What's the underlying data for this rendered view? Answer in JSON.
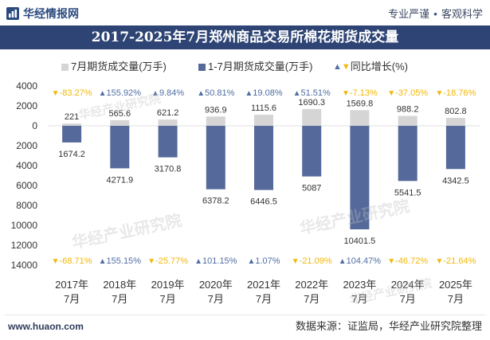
{
  "header": {
    "logo_icon": "logo-icon",
    "logo_text": "华经情报网",
    "slogan_left": "专业严谨",
    "slogan_dot": "●",
    "slogan_right": "客观科学"
  },
  "colors": {
    "title_bar": "#2d4474",
    "brand": "#2b4a80"
  },
  "watermark": "华经产业研究院",
  "chart_data": {
    "type": "bar",
    "title": "2017-2025年7月郑州商品交易所棉花期货成交量",
    "categories": [
      [
        "2017年",
        "7月"
      ],
      [
        "2018年",
        "7月"
      ],
      [
        "2019年",
        "7月"
      ],
      [
        "2020年",
        "7月"
      ],
      [
        "2021年",
        "7月"
      ],
      [
        "2022年",
        "7月"
      ],
      [
        "2023年",
        "7月"
      ],
      [
        "2024年",
        "7月"
      ],
      [
        "2025年",
        "7月"
      ]
    ],
    "series": [
      {
        "name": "7月期货成交量(万手)",
        "below_zero": false,
        "color": "#d5d5d5",
        "values": [
          221,
          565.6,
          621.2,
          936.9,
          1115.6,
          1690.3,
          1569.8,
          988.2,
          802.8
        ],
        "yoy": [
          -83.27,
          155.92,
          9.84,
          50.81,
          19.08,
          51.51,
          -7.13,
          -37.05,
          -18.76
        ]
      },
      {
        "name": "1-7月期货成交量(万手)",
        "below_zero": true,
        "color": "#55699a",
        "values": [
          1674.2,
          4271.9,
          3170.8,
          6378.2,
          6446.5,
          5087,
          10401.5,
          5541.5,
          4342.5
        ],
        "yoy": [
          -68.71,
          155.15,
          -25.77,
          101.15,
          1.07,
          -21.09,
          104.47,
          -46.72,
          -21.64
        ]
      }
    ],
    "yoy_legend": "同比增长(%)",
    "yoy_suffix": "%",
    "markers": {
      "increase": "▲",
      "decrease": "▼"
    },
    "marker_colors": {
      "increase": "#4f6ea3",
      "decrease": "#f2b705"
    },
    "yaxis": {
      "ticks_above_zero": [
        4000,
        2000
      ],
      "zero": 0,
      "ticks_below_zero": [
        2000,
        4000,
        6000,
        8000,
        10000,
        12000,
        14000
      ],
      "max_above_zero": 4000,
      "max_below_zero": 14000
    },
    "legend": "top",
    "grid": false
  },
  "footer": {
    "website": "www.huaon.com",
    "source": "数据来源：证监局，华经产业研究院整理"
  }
}
